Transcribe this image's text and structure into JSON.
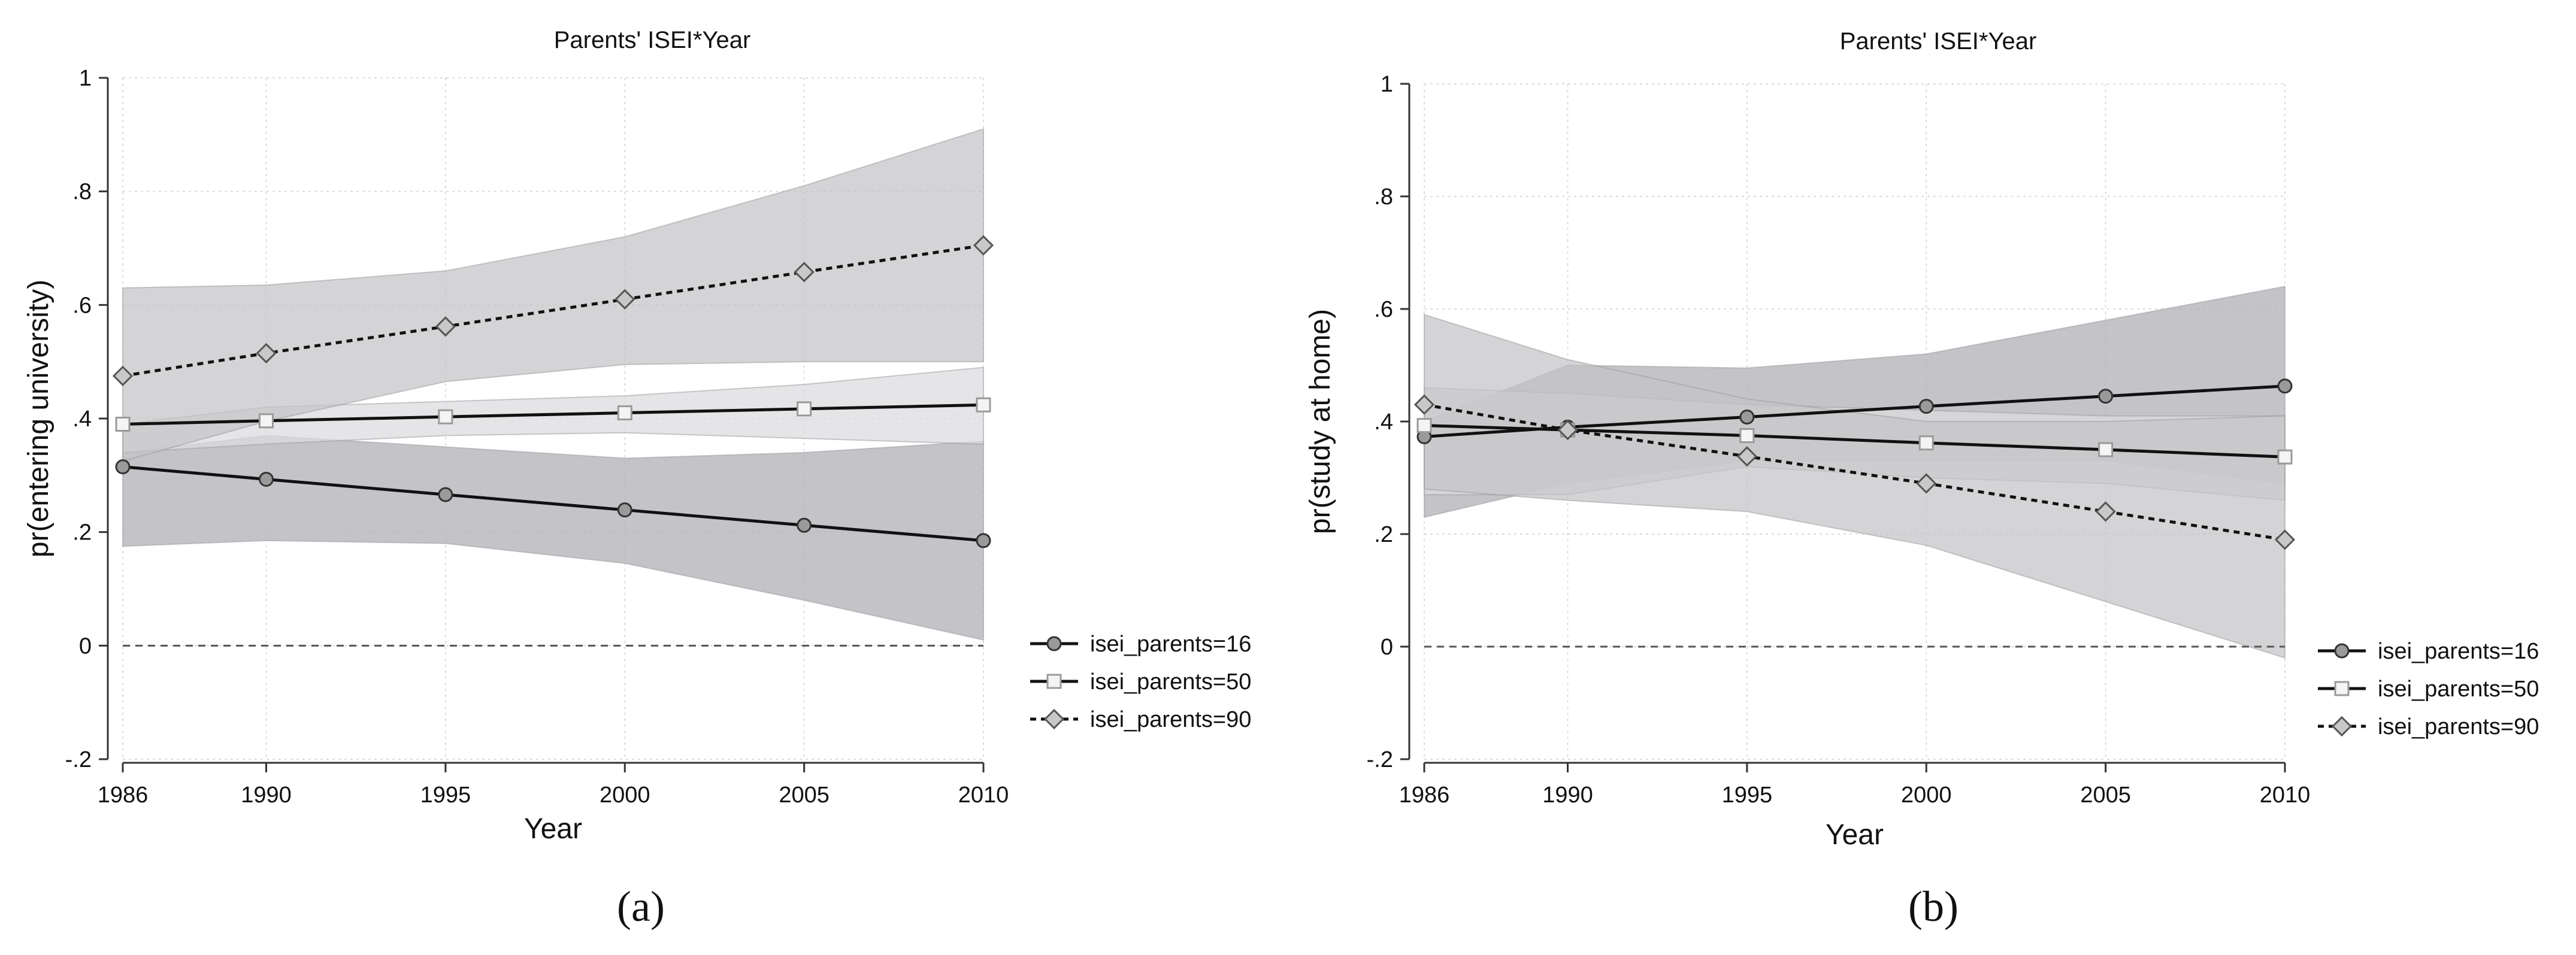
{
  "chart_data": [
    {
      "type": "line",
      "title": "Parents' ISEI*Year",
      "xlabel": "Year",
      "ylabel": "pr(entering university)",
      "caption": "(a)",
      "x": [
        1986,
        1990,
        1995,
        2000,
        2005,
        2010
      ],
      "x_tick_labels": [
        "1986",
        "1990",
        "1995",
        "2000",
        "2005",
        "2010"
      ],
      "ylim": [
        -0.2,
        1
      ],
      "y_ticks": [
        -0.2,
        0,
        0.2,
        0.4,
        0.6,
        0.8,
        1
      ],
      "y_tick_labels": [
        "-.2",
        "0",
        ".2",
        ".4",
        ".6",
        ".8",
        "1"
      ],
      "reference_line": 0,
      "grid": true,
      "legend_position": "right-bottom",
      "series": [
        {
          "name": "isei_parents=16",
          "marker": "circle",
          "line": "solid",
          "values": [
            0.315,
            0.293,
            0.266,
            0.239,
            0.212,
            0.185
          ],
          "ci_lower": [
            0.175,
            0.185,
            0.18,
            0.145,
            0.08,
            0.01
          ],
          "ci_upper": [
            0.34,
            0.37,
            0.35,
            0.33,
            0.34,
            0.36
          ]
        },
        {
          "name": "isei_parents=50",
          "marker": "square",
          "line": "solid",
          "values": [
            0.39,
            0.396,
            0.403,
            0.41,
            0.417,
            0.424
          ],
          "ci_lower": [
            0.34,
            0.355,
            0.37,
            0.375,
            0.365,
            0.355
          ],
          "ci_upper": [
            0.39,
            0.42,
            0.43,
            0.44,
            0.46,
            0.49
          ]
        },
        {
          "name": "isei_parents=90",
          "marker": "diamond",
          "line": "dashed",
          "values": [
            0.475,
            0.515,
            0.562,
            0.61,
            0.658,
            0.705
          ],
          "ci_lower": [
            0.325,
            0.395,
            0.465,
            0.495,
            0.5,
            0.5
          ],
          "ci_upper": [
            0.63,
            0.635,
            0.66,
            0.72,
            0.81,
            0.91
          ]
        }
      ]
    },
    {
      "type": "line",
      "title": "Parents' ISEI*Year",
      "xlabel": "Year",
      "ylabel": "pr(study at home)",
      "caption": "(b)",
      "x": [
        1986,
        1990,
        1995,
        2000,
        2005,
        2010
      ],
      "x_tick_labels": [
        "1986",
        "1990",
        "1995",
        "2000",
        "2005",
        "2010"
      ],
      "ylim": [
        -0.2,
        1
      ],
      "y_ticks": [
        -0.2,
        0,
        0.2,
        0.4,
        0.6,
        0.8,
        1
      ],
      "y_tick_labels": [
        "-.2",
        "0",
        ".2",
        ".4",
        ".6",
        ".8",
        "1"
      ],
      "reference_line": 0,
      "grid": true,
      "legend_position": "right-bottom",
      "series": [
        {
          "name": "isei_parents=16",
          "marker": "circle",
          "line": "solid",
          "values": [
            0.373,
            0.39,
            0.408,
            0.427,
            0.445,
            0.463
          ],
          "ci_lower": [
            0.23,
            0.29,
            0.33,
            0.33,
            0.33,
            0.29
          ],
          "ci_upper": [
            0.4,
            0.5,
            0.495,
            0.52,
            0.58,
            0.64
          ]
        },
        {
          "name": "isei_parents=50",
          "marker": "square",
          "line": "solid",
          "values": [
            0.393,
            0.385,
            0.375,
            0.362,
            0.35,
            0.337
          ],
          "ci_lower": [
            0.27,
            0.27,
            0.32,
            0.3,
            0.29,
            0.26
          ],
          "ci_upper": [
            0.46,
            0.45,
            0.43,
            0.42,
            0.41,
            0.41
          ]
        },
        {
          "name": "isei_parents=90",
          "marker": "diamond",
          "line": "dashed",
          "values": [
            0.43,
            0.385,
            0.338,
            0.29,
            0.24,
            0.19
          ],
          "ci_lower": [
            0.28,
            0.26,
            0.24,
            0.18,
            0.08,
            -0.02
          ],
          "ci_upper": [
            0.59,
            0.51,
            0.44,
            0.4,
            0.4,
            0.41
          ]
        }
      ]
    }
  ]
}
